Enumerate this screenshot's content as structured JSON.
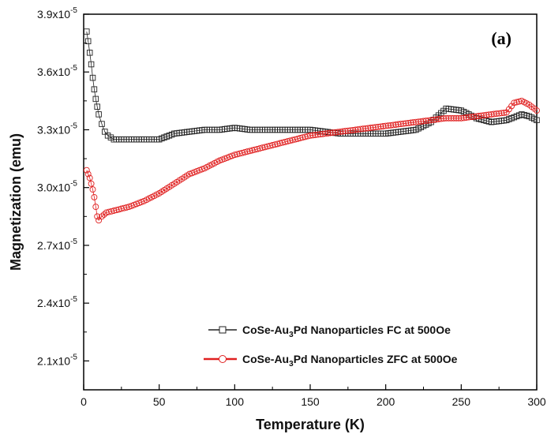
{
  "chart_data": {
    "type": "scatter",
    "panel_label": "(a)",
    "xlabel": "Temperature (K)",
    "ylabel": "Magnetization (emu)",
    "xlim": [
      0,
      300
    ],
    "ylim": [
      1.95,
      3.9
    ],
    "x_ticks": [
      0,
      50,
      100,
      150,
      200,
      250,
      300
    ],
    "y_ticks": [
      {
        "value": 3.9,
        "mantissa": "3.9x10",
        "exp": "-5"
      },
      {
        "value": 3.6,
        "mantissa": "3.6x10",
        "exp": "-5"
      },
      {
        "value": 3.3,
        "mantissa": "3.3x10",
        "exp": "-5"
      },
      {
        "value": 3.0,
        "mantissa": "3.0x10",
        "exp": "-5"
      },
      {
        "value": 2.7,
        "mantissa": "2.7x10",
        "exp": "-5"
      },
      {
        "value": 2.4,
        "mantissa": "2.4x10",
        "exp": "-5"
      },
      {
        "value": 2.1,
        "mantissa": "2.1x10",
        "exp": "-5"
      }
    ],
    "y_unit_multiplier": "x10^-5",
    "grid": false,
    "legend_position": "bottom-right",
    "series": [
      {
        "label_parts": [
          "CoSe-Au",
          "3",
          "Pd Nanoparticles FC at 500Oe"
        ],
        "color": "#222222",
        "marker": "square",
        "x": [
          2,
          3,
          4,
          5,
          6,
          7,
          8,
          9,
          10,
          12,
          14,
          16,
          18,
          20,
          25,
          30,
          40,
          50,
          60,
          70,
          80,
          90,
          100,
          110,
          120,
          130,
          140,
          150,
          160,
          170,
          180,
          190,
          200,
          210,
          220,
          230,
          240,
          250,
          260,
          270,
          280,
          290,
          295,
          300
        ],
        "y": [
          3.81,
          3.76,
          3.7,
          3.64,
          3.57,
          3.51,
          3.46,
          3.42,
          3.38,
          3.33,
          3.29,
          3.27,
          3.26,
          3.25,
          3.25,
          3.25,
          3.25,
          3.25,
          3.28,
          3.29,
          3.3,
          3.3,
          3.31,
          3.3,
          3.3,
          3.3,
          3.3,
          3.3,
          3.29,
          3.28,
          3.28,
          3.28,
          3.28,
          3.29,
          3.3,
          3.34,
          3.41,
          3.4,
          3.36,
          3.34,
          3.35,
          3.38,
          3.37,
          3.35
        ]
      },
      {
        "label_parts": [
          "CoSe-Au",
          "3",
          "Pd Nanoparticles ZFC at 500Oe"
        ],
        "color": "#e02020",
        "marker": "circle",
        "x": [
          2,
          3,
          4,
          5,
          6,
          7,
          8,
          9,
          10,
          12,
          15,
          20,
          25,
          30,
          40,
          50,
          60,
          70,
          80,
          90,
          100,
          110,
          120,
          130,
          140,
          150,
          160,
          170,
          180,
          190,
          200,
          210,
          220,
          230,
          240,
          250,
          260,
          270,
          280,
          285,
          290,
          295,
          300
        ],
        "y": [
          3.09,
          3.07,
          3.05,
          3.02,
          2.99,
          2.95,
          2.9,
          2.85,
          2.83,
          2.85,
          2.87,
          2.88,
          2.89,
          2.9,
          2.93,
          2.97,
          3.02,
          3.07,
          3.1,
          3.14,
          3.17,
          3.19,
          3.21,
          3.23,
          3.25,
          3.27,
          3.28,
          3.29,
          3.3,
          3.31,
          3.32,
          3.33,
          3.34,
          3.35,
          3.36,
          3.36,
          3.37,
          3.38,
          3.39,
          3.44,
          3.45,
          3.43,
          3.4
        ]
      }
    ]
  }
}
